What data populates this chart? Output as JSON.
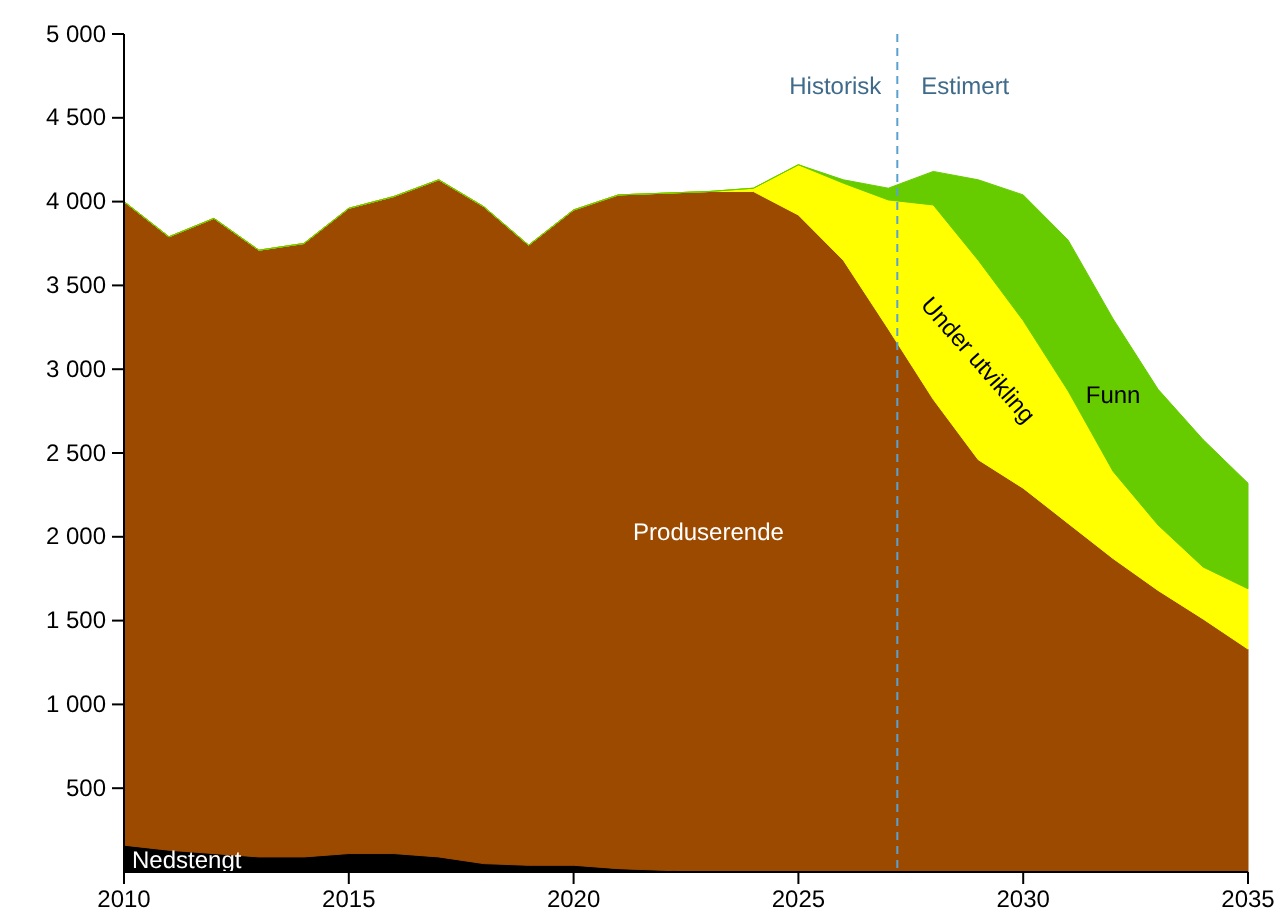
{
  "chart_data": {
    "type": "area",
    "stacked": true,
    "grid": false,
    "x": [
      2010,
      2011,
      2012,
      2013,
      2014,
      2015,
      2016,
      2017,
      2018,
      2019,
      2020,
      2021,
      2022,
      2023,
      2024,
      2025,
      2026,
      2027,
      2028,
      2029,
      2030,
      2031,
      2032,
      2033,
      2034,
      2035
    ],
    "series": [
      {
        "name": "Nedstengt",
        "color": "#000000",
        "values": [
          160,
          130,
          110,
          90,
          90,
          110,
          110,
          90,
          50,
          40,
          40,
          20,
          10,
          0,
          0,
          0,
          0,
          0,
          0,
          0,
          0,
          0,
          0,
          0,
          0,
          0
        ]
      },
      {
        "name": "Produserende",
        "color": "#9c4a00",
        "values": [
          3840,
          3660,
          3790,
          3620,
          3660,
          3850,
          3920,
          4040,
          3920,
          3700,
          3910,
          4020,
          4040,
          4060,
          4060,
          3920,
          3650,
          3240,
          2820,
          2460,
          2290,
          2080,
          1870,
          1680,
          1510,
          1330
        ]
      },
      {
        "name": "Under utvikling",
        "color": "#ffff00",
        "values": [
          0,
          0,
          0,
          0,
          0,
          0,
          0,
          0,
          0,
          0,
          0,
          0,
          0,
          0,
          20,
          300,
          460,
          770,
          1160,
          1190,
          1000,
          790,
          520,
          390,
          310,
          360
        ]
      },
      {
        "name": "Funn",
        "color": "#66cc00",
        "values": [
          0,
          0,
          0,
          0,
          0,
          0,
          0,
          0,
          0,
          0,
          0,
          0,
          0,
          0,
          0,
          0,
          20,
          70,
          200,
          480,
          750,
          900,
          910,
          810,
          760,
          630
        ]
      }
    ],
    "xlim": [
      2010,
      2035
    ],
    "xticks": [
      2010,
      2015,
      2020,
      2025,
      2030,
      2035
    ],
    "ylim": [
      0,
      5000
    ],
    "yticks": [
      {
        "value": 500,
        "label": "500"
      },
      {
        "value": 1000,
        "label": "1 000"
      },
      {
        "value": 1500,
        "label": "1 500"
      },
      {
        "value": 2000,
        "label": "2 000"
      },
      {
        "value": 2500,
        "label": "2 500"
      },
      {
        "value": 3000,
        "label": "3 000"
      },
      {
        "value": 3500,
        "label": "3 500"
      },
      {
        "value": 4000,
        "label": "4 000"
      },
      {
        "value": 4500,
        "label": "4 500"
      },
      {
        "value": 5000,
        "label": "5 000"
      }
    ],
    "ref_lines": [
      {
        "axis": "x",
        "value": 2027.2,
        "color": "#5aa0d0",
        "line_style": "dashed"
      }
    ],
    "annotations": [
      "Historisk",
      "Estimert"
    ]
  }
}
